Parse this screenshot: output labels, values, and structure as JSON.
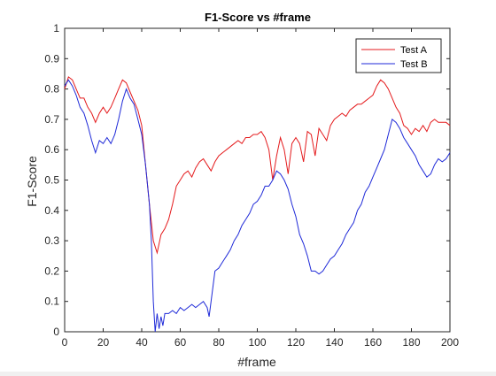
{
  "chart_data": {
    "type": "line",
    "title": "F1-Score vs #frame",
    "xlabel": "#frame",
    "ylabel": "F1-Score",
    "xlim": [
      0,
      200
    ],
    "ylim": [
      0,
      1
    ],
    "xticks": [
      0,
      20,
      40,
      60,
      80,
      100,
      120,
      140,
      160,
      180,
      200
    ],
    "yticks": [
      0,
      0.1,
      0.2,
      0.3,
      0.4,
      0.5,
      0.6,
      0.7,
      0.8,
      0.9,
      1
    ],
    "xtick_labels": [
      "0",
      "20",
      "40",
      "60",
      "80",
      "100",
      "120",
      "140",
      "160",
      "180",
      "200"
    ],
    "ytick_labels": [
      "0",
      "0.1",
      "0.2",
      "0.3",
      "0.4",
      "0.5",
      "0.6",
      "0.7",
      "0.8",
      "0.9",
      "1"
    ],
    "grid": false,
    "legend_position": "top-right",
    "series": [
      {
        "name": "Test A",
        "color": "#e41a1c",
        "x": [
          0,
          2,
          4,
          6,
          8,
          10,
          12,
          14,
          16,
          18,
          20,
          22,
          24,
          26,
          28,
          30,
          32,
          34,
          36,
          38,
          40,
          42,
          44,
          46,
          48,
          50,
          52,
          54,
          56,
          58,
          60,
          62,
          64,
          66,
          68,
          70,
          72,
          74,
          76,
          78,
          80,
          82,
          84,
          86,
          88,
          90,
          92,
          94,
          96,
          98,
          100,
          102,
          104,
          106,
          108,
          110,
          112,
          114,
          116,
          118,
          120,
          122,
          124,
          126,
          128,
          130,
          132,
          134,
          136,
          138,
          140,
          142,
          144,
          146,
          148,
          150,
          152,
          154,
          156,
          158,
          160,
          162,
          164,
          166,
          168,
          170,
          172,
          174,
          176,
          178,
          180,
          182,
          184,
          186,
          188,
          190,
          192,
          194,
          196,
          198,
          200
        ],
        "values": [
          0.8,
          0.84,
          0.83,
          0.8,
          0.77,
          0.77,
          0.74,
          0.72,
          0.69,
          0.72,
          0.74,
          0.72,
          0.74,
          0.77,
          0.8,
          0.83,
          0.82,
          0.79,
          0.76,
          0.73,
          0.68,
          0.55,
          0.42,
          0.3,
          0.26,
          0.32,
          0.34,
          0.37,
          0.42,
          0.48,
          0.5,
          0.52,
          0.53,
          0.51,
          0.54,
          0.56,
          0.57,
          0.55,
          0.53,
          0.56,
          0.58,
          0.59,
          0.6,
          0.61,
          0.62,
          0.63,
          0.62,
          0.64,
          0.64,
          0.65,
          0.65,
          0.66,
          0.64,
          0.6,
          0.5,
          0.58,
          0.64,
          0.6,
          0.52,
          0.62,
          0.64,
          0.62,
          0.56,
          0.66,
          0.65,
          0.58,
          0.67,
          0.65,
          0.63,
          0.68,
          0.7,
          0.71,
          0.72,
          0.71,
          0.73,
          0.74,
          0.75,
          0.75,
          0.76,
          0.77,
          0.78,
          0.81,
          0.83,
          0.82,
          0.8,
          0.77,
          0.74,
          0.72,
          0.68,
          0.67,
          0.65,
          0.67,
          0.66,
          0.68,
          0.66,
          0.69,
          0.7,
          0.69,
          0.69,
          0.69,
          0.68
        ]
      },
      {
        "name": "Test B",
        "color": "#1f2ad8",
        "x": [
          0,
          2,
          4,
          6,
          8,
          10,
          12,
          14,
          16,
          18,
          20,
          22,
          24,
          26,
          28,
          30,
          32,
          34,
          36,
          38,
          40,
          42,
          44,
          45,
          46,
          47,
          48,
          49,
          50,
          51,
          52,
          54,
          56,
          58,
          60,
          62,
          64,
          66,
          68,
          70,
          72,
          74,
          75,
          76,
          78,
          80,
          82,
          84,
          86,
          88,
          90,
          92,
          94,
          96,
          98,
          100,
          102,
          104,
          106,
          108,
          110,
          112,
          114,
          116,
          118,
          120,
          122,
          124,
          126,
          128,
          130,
          132,
          134,
          136,
          138,
          140,
          142,
          144,
          146,
          148,
          150,
          152,
          154,
          156,
          158,
          160,
          162,
          164,
          166,
          168,
          170,
          172,
          174,
          176,
          178,
          180,
          182,
          184,
          186,
          188,
          190,
          192,
          194,
          196,
          198,
          200
        ],
        "values": [
          0.81,
          0.83,
          0.81,
          0.78,
          0.74,
          0.72,
          0.68,
          0.63,
          0.59,
          0.63,
          0.62,
          0.64,
          0.62,
          0.65,
          0.7,
          0.76,
          0.8,
          0.77,
          0.75,
          0.7,
          0.65,
          0.55,
          0.42,
          0.3,
          0.1,
          0.0,
          0.06,
          0.01,
          0.05,
          0.02,
          0.06,
          0.06,
          0.07,
          0.06,
          0.08,
          0.07,
          0.08,
          0.09,
          0.08,
          0.09,
          0.1,
          0.08,
          0.05,
          0.1,
          0.2,
          0.21,
          0.23,
          0.25,
          0.27,
          0.3,
          0.32,
          0.35,
          0.37,
          0.39,
          0.42,
          0.43,
          0.45,
          0.48,
          0.48,
          0.5,
          0.53,
          0.52,
          0.5,
          0.47,
          0.42,
          0.38,
          0.32,
          0.29,
          0.25,
          0.2,
          0.2,
          0.19,
          0.2,
          0.22,
          0.24,
          0.25,
          0.27,
          0.29,
          0.32,
          0.34,
          0.36,
          0.4,
          0.42,
          0.46,
          0.48,
          0.51,
          0.54,
          0.57,
          0.6,
          0.65,
          0.7,
          0.69,
          0.67,
          0.64,
          0.62,
          0.6,
          0.58,
          0.55,
          0.53,
          0.51,
          0.52,
          0.55,
          0.57,
          0.56,
          0.57,
          0.59
        ]
      }
    ]
  }
}
